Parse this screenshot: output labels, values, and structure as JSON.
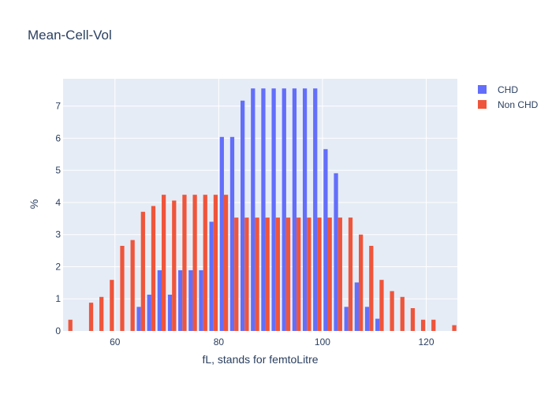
{
  "chart_data": {
    "type": "bar",
    "title": "Mean-Cell-Vol",
    "xlabel": "fL, stands for femtoLitre",
    "ylabel": "%",
    "xlim": [
      50,
      126
    ],
    "ylim": [
      0,
      7.85
    ],
    "x_ticks": [
      60,
      80,
      100,
      120
    ],
    "y_ticks": [
      0,
      1,
      2,
      3,
      4,
      5,
      6,
      7
    ],
    "bin_width": 2,
    "legend_position": "top-right",
    "grid": true,
    "x": [
      51,
      53,
      55,
      57,
      59,
      61,
      63,
      65,
      67,
      69,
      71,
      73,
      75,
      77,
      79,
      81,
      83,
      85,
      87,
      89,
      91,
      93,
      95,
      97,
      99,
      101,
      103,
      105,
      107,
      109,
      111,
      113,
      115,
      117,
      119,
      121,
      123,
      125
    ],
    "series": [
      {
        "name": "CHD",
        "color": "#636efa",
        "values": [
          0,
          0,
          0,
          0,
          0,
          0,
          0,
          0.75,
          1.13,
          1.89,
          1.13,
          1.89,
          1.89,
          1.89,
          3.4,
          6.04,
          6.04,
          7.17,
          7.55,
          7.55,
          7.55,
          7.55,
          7.55,
          7.55,
          7.55,
          5.66,
          4.91,
          0.75,
          1.51,
          0.75,
          0.38,
          0,
          0,
          0,
          0,
          0,
          0,
          0
        ]
      },
      {
        "name": "Non CHD",
        "color": "#ef553b",
        "values": [
          0.35,
          0,
          0.88,
          1.06,
          1.59,
          2.65,
          2.83,
          3.71,
          3.89,
          4.24,
          4.06,
          4.24,
          4.24,
          4.24,
          4.24,
          4.24,
          3.53,
          3.53,
          3.53,
          3.53,
          3.53,
          3.53,
          3.53,
          3.53,
          3.53,
          3.53,
          3.53,
          3.53,
          3.0,
          2.65,
          1.59,
          1.24,
          1.06,
          0.71,
          0.35,
          0.35,
          0,
          0.18
        ]
      }
    ]
  },
  "style": {
    "plot_bg": "#e5ecf6",
    "grid_color": "#ffffff",
    "text_color": "#2a3f5f"
  }
}
